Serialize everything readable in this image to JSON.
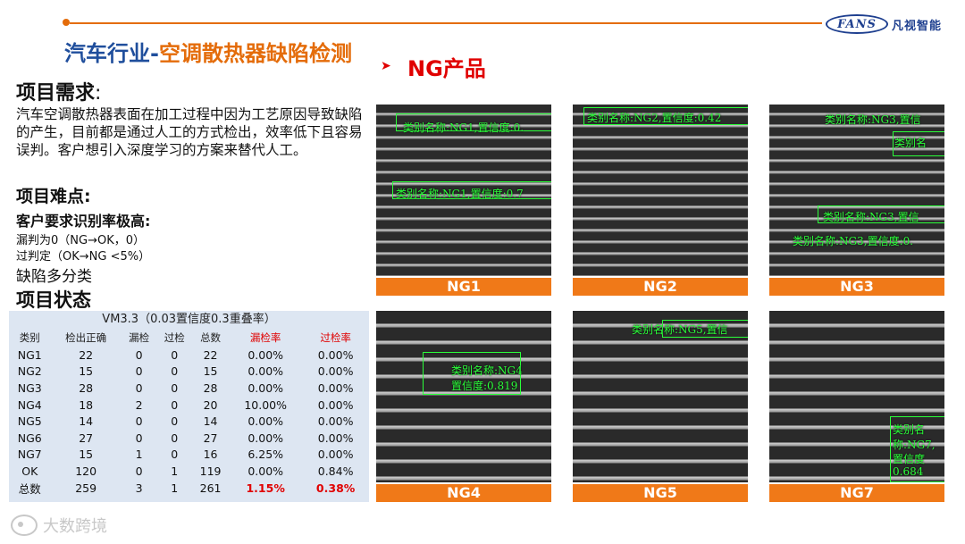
{
  "header": {
    "logo_text": "FANS",
    "company": "凡视智能",
    "colors": {
      "accent": "#e46c0a",
      "brand_blue": "#1f4e9c",
      "red": "#e00000"
    }
  },
  "title": {
    "part1": "汽车行业-",
    "part2": "空调散热器缺陷检测"
  },
  "ng_section": {
    "arrow": "➤",
    "title": "NG产品"
  },
  "requirements": {
    "heading": "项目需求",
    "colon": ":",
    "text": "汽车空调散热器表面在加工过程中因为工艺原因导致缺陷的产生，目前都是通过人工的方式检出，效率低下且容易误判。客户想引入深度学习的方案来替代人工。"
  },
  "difficulties": {
    "heading": "项目难点:",
    "sub_heading": "客户要求识别率极高:",
    "miss": "漏判为0（NG→OK，0）",
    "over": "过判定（OK→NG <5%）",
    "multi": "缺陷多分类"
  },
  "status": {
    "heading": "项目状态"
  },
  "table": {
    "caption": "VM3.3（0.03置信度0.3重叠率）",
    "headers": [
      "类别",
      "检出正确",
      "漏检",
      "过检",
      "总数",
      "漏检率",
      "过检率"
    ],
    "rows": [
      [
        "NG1",
        "22",
        "0",
        "0",
        "22",
        "0.00%",
        "0.00%"
      ],
      [
        "NG2",
        "15",
        "0",
        "0",
        "15",
        "0.00%",
        "0.00%"
      ],
      [
        "NG3",
        "28",
        "0",
        "0",
        "28",
        "0.00%",
        "0.00%"
      ],
      [
        "NG4",
        "18",
        "2",
        "0",
        "20",
        "10.00%",
        "0.00%"
      ],
      [
        "NG5",
        "14",
        "0",
        "0",
        "14",
        "0.00%",
        "0.00%"
      ],
      [
        "NG6",
        "27",
        "0",
        "0",
        "27",
        "0.00%",
        "0.00%"
      ],
      [
        "NG7",
        "15",
        "1",
        "0",
        "16",
        "6.25%",
        "0.00%"
      ],
      [
        "OK",
        "120",
        "0",
        "1",
        "119",
        "0.00%",
        "0.84%"
      ]
    ],
    "total": [
      "总数",
      "259",
      "3",
      "1",
      "261",
      "1.15%",
      "0.38%"
    ]
  },
  "images": [
    {
      "label": "NG1",
      "annotations": [
        "类别名称:NG1,置信度:0.",
        "类别名称:NG1,置信度:0.7"
      ]
    },
    {
      "label": "NG2",
      "annotations": [
        "类别名称:NG2,置信度:0.42"
      ]
    },
    {
      "label": "NG3",
      "annotations": [
        "类别名称:NG3,置信",
        "类别名",
        "类别名称:NG3,置信",
        "类别名称:NG3,置信度:0."
      ]
    },
    {
      "label": "NG4",
      "annotations": [
        "类别名称:NG4",
        "置信度:0.819"
      ]
    },
    {
      "label": "NG5",
      "annotations": [
        "类别名称:NG5,置信"
      ]
    },
    {
      "label": "NG7",
      "annotations": [
        "类别名",
        "称:NG7,",
        "置信度",
        "0.684"
      ]
    }
  ],
  "watermark": {
    "text": "大数跨境"
  }
}
